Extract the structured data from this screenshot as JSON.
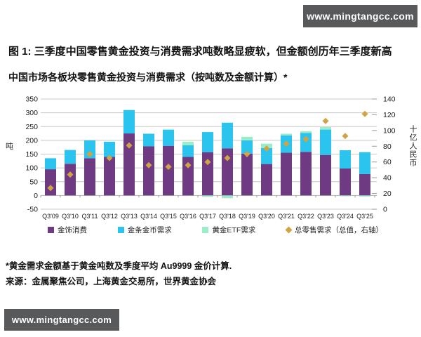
{
  "banner": {
    "url_text": "www.mingtangcc.com"
  },
  "title": {
    "line1": "图 1: 三季度中国零售黄金投资与消费需求吨数略显疲软，但金额创历年三季度新高",
    "line2": "中国市场各板块零售黄金投资与消费需求（按吨数及金额计算）*"
  },
  "chart_data": {
    "type": "bar",
    "subtype": "stacked-bars-with-right-axis-scatter",
    "title": "中国市场各板块零售黄金投资与消费需求（按吨数及金额计算）",
    "categories": [
      "Q3'09",
      "Q3'10",
      "Q3'11",
      "Q3'12",
      "Q3'13",
      "Q3'14",
      "Q3'15",
      "Q3'16",
      "Q3'17",
      "Q3'18",
      "Q3'19",
      "Q3'20",
      "Q3'21",
      "Q3'22",
      "Q3'23",
      "Q3'24",
      "Q3'25"
    ],
    "series": [
      {
        "name": "金饰消费",
        "type": "bar",
        "axis": "left",
        "color": "#6e3a82",
        "values": [
          95,
          115,
          135,
          140,
          225,
          178,
          180,
          140,
          157,
          171,
          152,
          114,
          155,
          158,
          147,
          98,
          78
        ]
      },
      {
        "name": "金条金币需求",
        "type": "bar",
        "axis": "left",
        "color": "#2bc4ee",
        "values": [
          40,
          50,
          65,
          55,
          85,
          46,
          58,
          42,
          73,
          93,
          48,
          58,
          63,
          69,
          92,
          66,
          79
        ]
      },
      {
        "name": "黄金ETF需求",
        "type": "bar",
        "axis": "left",
        "color": "#9cecca",
        "values": [
          0,
          0,
          0,
          0,
          0,
          0,
          2,
          13,
          -5,
          -10,
          13,
          16,
          6,
          6,
          9,
          -3,
          -4
        ]
      },
      {
        "name": "总零售需求（总值，右轴）",
        "type": "scatter",
        "axis": "right",
        "color": "#d2a344",
        "values": [
          27,
          44,
          70,
          65,
          81,
          56,
          54,
          56,
          60,
          65,
          70,
          77,
          83,
          89,
          112,
          93,
          121
        ]
      }
    ],
    "left_axis": {
      "label": "吨",
      "min": -50,
      "max": 350,
      "step": 50
    },
    "right_axis": {
      "label": "十亿人民币",
      "min": 0,
      "max": 140,
      "step": 20
    },
    "grid": true,
    "legend_position": "bottom",
    "colors": {
      "gridline": "#c8c8c8",
      "baseline": "#b3b3b3",
      "tick": "#999999"
    }
  },
  "footnotes": {
    "note": "*黄金需求金额基于黄金吨数及季度平均 Au9999 金价计算.",
    "source": "来源：金属聚焦公司，上海黄金交易所，世界黄金协会"
  }
}
